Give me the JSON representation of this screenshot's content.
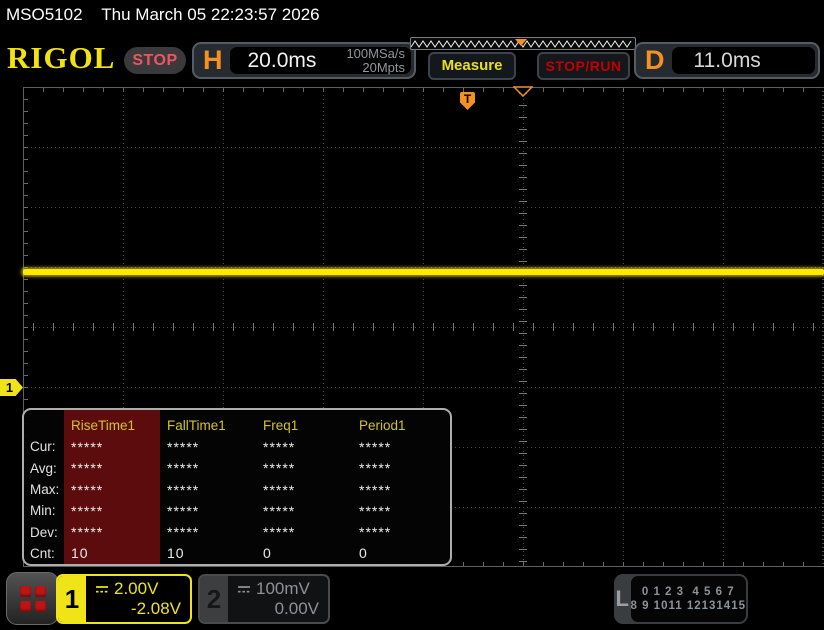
{
  "titlebar": {
    "model": "MSO5102",
    "datetime": "Thu March 05 22:23:57 2026"
  },
  "header": {
    "logo": "RIGOL",
    "run_state": "STOP",
    "horizontal": {
      "label": "H",
      "timebase": "20.0ms",
      "sample_rate": "100MSa/s",
      "memory_depth": "20Mpts"
    },
    "measure_button": "Measure",
    "stop_run_button": "STOP/RUN",
    "delay": {
      "label": "D",
      "value": "11.0ms"
    }
  },
  "trigger": {
    "marker": "T"
  },
  "measure_table": {
    "columns": [
      "RiseTime1",
      "FallTime1",
      "Freq1",
      "Period1"
    ],
    "selected_column": "RiseTime1",
    "rows": [
      {
        "label": "Cur:",
        "values": [
          "*****",
          "*****",
          "*****",
          "*****"
        ]
      },
      {
        "label": "Avg:",
        "values": [
          "*****",
          "*****",
          "*****",
          "*****"
        ]
      },
      {
        "label": "Max:",
        "values": [
          "*****",
          "*****",
          "*****",
          "*****"
        ]
      },
      {
        "label": "Min:",
        "values": [
          "*****",
          "*****",
          "*****",
          "*****"
        ]
      },
      {
        "label": "Dev:",
        "values": [
          "*****",
          "*****",
          "*****",
          "*****"
        ]
      },
      {
        "label": "Cnt:",
        "values": [
          "10",
          "10",
          "0",
          "0"
        ]
      }
    ]
  },
  "channels": {
    "ch1": {
      "number": "1",
      "scale": "2.00V",
      "offset": "-2.08V"
    },
    "ch2": {
      "number": "2",
      "scale": "100mV",
      "offset": "0.00V"
    },
    "logic": {
      "label": "L",
      "row1": "0 1 2 3  4 5 6 7",
      "row2": "8 9 1011 12131415"
    }
  },
  "colors": {
    "accent_yellow": "#f0e318",
    "accent_orange": "#f59120",
    "stop_badge_red": "#f0555e",
    "stop_run_red": "#c40000",
    "waveform_yellow": "#ffe800",
    "selected_column_red": "#5c0c0c"
  }
}
